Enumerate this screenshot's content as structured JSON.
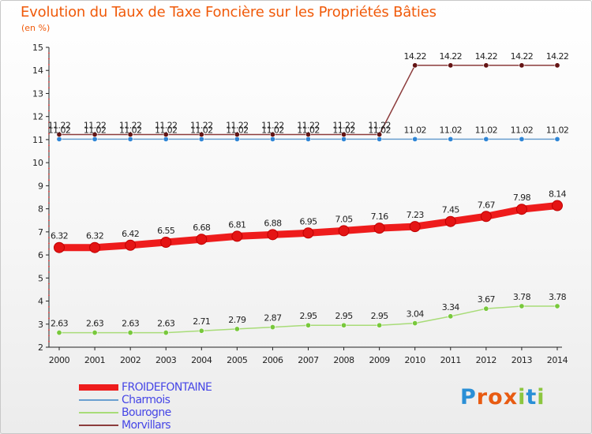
{
  "page": {
    "title": "Evolution du Taux de Taxe Foncière sur les Propriétés Bâties",
    "subtitle": "(en %)",
    "logo": {
      "text": "Proxiti",
      "letters": [
        "P",
        "r",
        "o",
        "x",
        "i",
        "t",
        "i"
      ],
      "letter_colors": [
        "#2a8fd6",
        "#e85b12",
        "#e85b12",
        "#e85b12",
        "#8cc63f",
        "#2a8fd6",
        "#8cc63f"
      ]
    }
  },
  "chart_data": {
    "type": "line",
    "title": "Evolution du Taux de Taxe Foncière sur les Propriétés Bâties",
    "ylabel": "(en %)",
    "xlabel": "",
    "ylim": [
      2,
      15
    ],
    "yticks": [
      "2",
      "3",
      "4",
      "5",
      "6",
      "7",
      "8",
      "9",
      "10",
      "11",
      "12",
      "13",
      "14",
      "15"
    ],
    "grid": false,
    "legend_position": "bottom-left",
    "x": [
      "2000",
      "2001",
      "2002",
      "2003",
      "2004",
      "2005",
      "2006",
      "2007",
      "2008",
      "2009",
      "2010",
      "2011",
      "2012",
      "2013",
      "2014"
    ],
    "series": [
      {
        "name": "FROIDEFONTAINE",
        "color": "#ee1c1c",
        "marker_color": "#e41414",
        "emphasis": true,
        "values": [
          6.32,
          6.32,
          6.42,
          6.55,
          6.68,
          6.81,
          6.88,
          6.95,
          7.05,
          7.16,
          7.23,
          7.45,
          7.67,
          7.98,
          8.14
        ],
        "labels": [
          "6.32",
          "6.32",
          "6.42",
          "6.55",
          "6.68",
          "6.81",
          "6.88",
          "6.95",
          "7.05",
          "7.16",
          "7.23",
          "7.45",
          "7.67",
          "7.98",
          "8.14"
        ]
      },
      {
        "name": "Charmois",
        "color": "#6a9fd0",
        "marker_color": "#2f86d6",
        "emphasis": false,
        "values": [
          11.02,
          11.02,
          11.02,
          11.02,
          11.02,
          11.02,
          11.02,
          11.02,
          11.02,
          11.02,
          11.02,
          11.02,
          11.02,
          11.02,
          11.02
        ],
        "labels": [
          "11.02",
          "11.02",
          "11.02",
          "11.02",
          "11.02",
          "11.02",
          "11.02",
          "11.02",
          "11.02",
          "11.02",
          "11.02",
          "11.02",
          "11.02",
          "11.02",
          "11.02"
        ]
      },
      {
        "name": "Bourogne",
        "color": "#a8dc78",
        "marker_color": "#78c83c",
        "emphasis": false,
        "values": [
          2.63,
          2.63,
          2.63,
          2.63,
          2.71,
          2.79,
          2.87,
          2.95,
          2.95,
          2.95,
          3.04,
          3.34,
          3.67,
          3.78,
          3.78
        ],
        "labels": [
          "2.63",
          "2.63",
          "2.63",
          "2.63",
          "2.71",
          "2.79",
          "2.87",
          "2.95",
          "2.95",
          "2.95",
          "3.04",
          "3.34",
          "3.67",
          "3.78",
          "3.78"
        ]
      },
      {
        "name": "Morvillars",
        "color": "#8c3c3c",
        "marker_color": "#641414",
        "emphasis": false,
        "values": [
          11.22,
          11.22,
          11.22,
          11.22,
          11.22,
          11.22,
          11.22,
          11.22,
          11.22,
          11.22,
          14.22,
          14.22,
          14.22,
          14.22,
          14.22
        ],
        "labels": [
          "11.22",
          "11.22",
          "11.22",
          "11.22",
          "11.22",
          "11.22",
          "11.22",
          "11.22",
          "11.22",
          "11.22",
          "14.22",
          "14.22",
          "14.22",
          "14.22",
          "14.22"
        ]
      }
    ]
  }
}
